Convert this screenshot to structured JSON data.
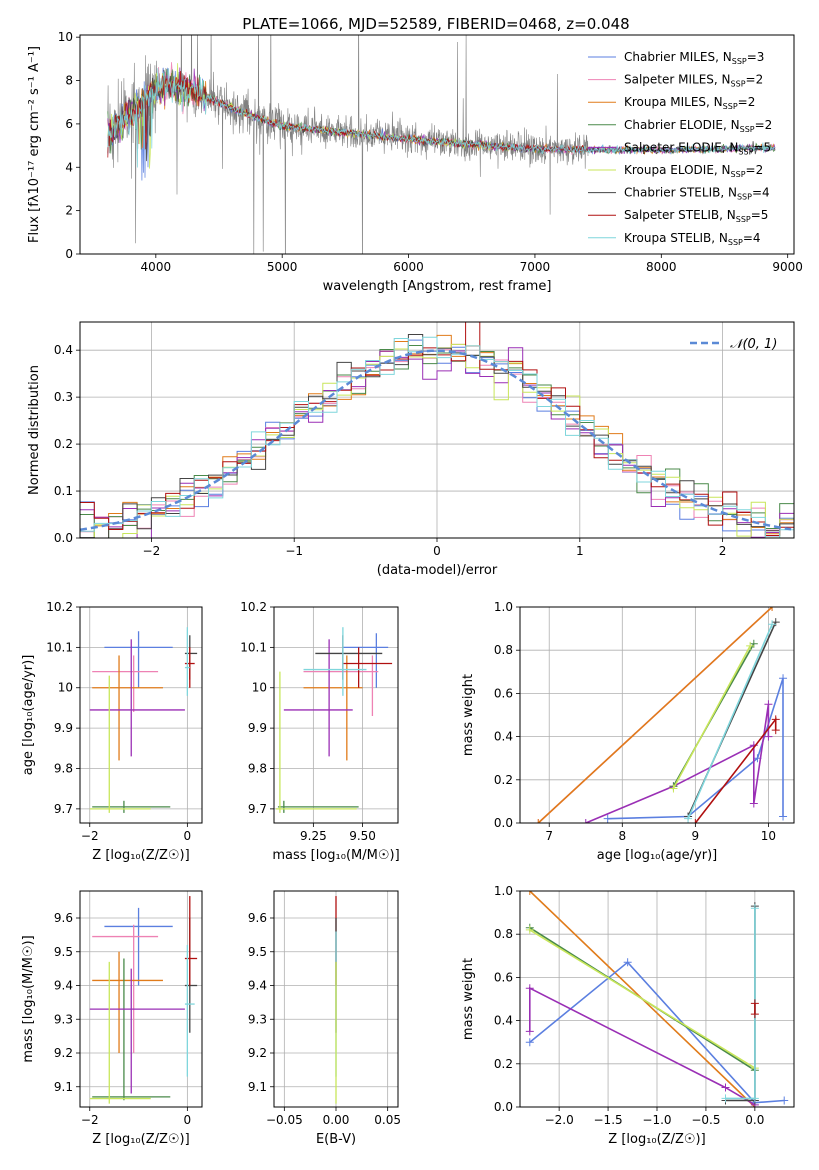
{
  "figure_title": "PLATE=1066, MJD=52589, FIBERID=0468, z=0.048",
  "models": [
    {
      "key": "chabrier_miles",
      "name": "Chabrier MILES",
      "nssp": "3",
      "color": "#5b7fe0"
    },
    {
      "key": "salpeter_miles",
      "name": "Salpeter MILES",
      "nssp": "2",
      "color": "#ee82b4"
    },
    {
      "key": "kroupa_miles",
      "name": "Kroupa MILES",
      "nssp": "2",
      "color": "#e07b1a"
    },
    {
      "key": "chabrier_elodie",
      "name": "Chabrier ELODIE",
      "nssp": "2",
      "color": "#4a8a4a"
    },
    {
      "key": "salpeter_elodie",
      "name": "Salpeter ELODIE",
      "nssp": "5",
      "color": "#9a2fb5"
    },
    {
      "key": "kroupa_elodie",
      "name": "Kroupa ELODIE",
      "nssp": "2",
      "color": "#c8e65a"
    },
    {
      "key": "chabrier_stelib",
      "name": "Chabrier STELIB",
      "nssp": "4",
      "color": "#444444"
    },
    {
      "key": "salpeter_stelib",
      "name": "Salpeter STELIB",
      "nssp": "5",
      "color": "#b01010"
    },
    {
      "key": "kroupa_stelib",
      "name": "Kroupa STELIB",
      "nssp": "4",
      "color": "#7fd6dc"
    }
  ],
  "chart_data": [
    {
      "id": "spectrum",
      "type": "line",
      "xlabel": "wavelength [Angstrom, rest frame]",
      "ylabel": "Flux [fλ10⁻¹⁷ erg cm⁻² s⁻¹ A⁻¹]",
      "xlim": [
        3400,
        9050
      ],
      "ylim": [
        0,
        10.1
      ],
      "xticks": [
        4000,
        5000,
        6000,
        7000,
        8000,
        9000
      ],
      "yticks": [
        0,
        2,
        4,
        6,
        8,
        10
      ],
      "grid": false,
      "legend_position": "top-right",
      "data_color": "#808080",
      "observed_range": [
        3620,
        7420
      ],
      "continuum_knots": {
        "x": [
          3620,
          3800,
          3950,
          4100,
          4300,
          4700,
          5000,
          5500,
          6000,
          6500,
          7000,
          7500,
          8000,
          8500,
          8900
        ],
        "y": [
          5.5,
          6.4,
          7.4,
          7.8,
          7.5,
          6.5,
          5.9,
          5.6,
          5.3,
          5.05,
          4.85,
          4.8,
          4.8,
          4.85,
          4.9
        ]
      }
    },
    {
      "id": "residuals",
      "type": "step",
      "xlabel": "(data-model)/error",
      "ylabel": "Normed distribution",
      "xlim": [
        -2.5,
        2.5
      ],
      "ylim": [
        0,
        0.46
      ],
      "xticks": [
        -2,
        -1,
        0,
        1,
        2
      ],
      "yticks": [
        0.0,
        0.1,
        0.2,
        0.3,
        0.4
      ],
      "grid": true,
      "legend_position": "top-right",
      "reference_curve": {
        "label": "𝒩(0, 1)",
        "color": "#5b8ad6",
        "mean": 0,
        "sigma": 1
      }
    },
    {
      "id": "age_vs_Z",
      "type": "errorbar",
      "xlabel": "Z [log₁₀(Z/Z☉)]",
      "ylabel": "age  [log₁₀(age/yr)]",
      "xlim": [
        -2.2,
        0.3
      ],
      "ylim": [
        9.665,
        10.2
      ],
      "xticks": [
        -2,
        0
      ],
      "yticks": [
        9.7,
        9.8,
        9.9,
        10.0,
        10.1,
        10.2
      ],
      "grid": true,
      "points": [
        {
          "m": "chabrier_miles",
          "x": -1.0,
          "y": 10.1,
          "xlo": -1.7,
          "xhi": -0.3,
          "ylo": 10.0,
          "yhi": 10.14
        },
        {
          "m": "salpeter_miles",
          "x": -1.1,
          "y": 10.04,
          "xlo": -1.95,
          "xhi": -0.6,
          "ylo": 9.94,
          "yhi": 10.08
        },
        {
          "m": "kroupa_miles",
          "x": -1.4,
          "y": 10.0,
          "xlo": -1.95,
          "xhi": -0.5,
          "ylo": 9.82,
          "yhi": 10.08
        },
        {
          "m": "chabrier_elodie",
          "x": -1.3,
          "y": 9.705,
          "xlo": -1.95,
          "xhi": -0.35,
          "ylo": 9.69,
          "yhi": 9.72
        },
        {
          "m": "salpeter_elodie",
          "x": -1.15,
          "y": 9.945,
          "xlo": -2.0,
          "xhi": -0.05,
          "ylo": 9.83,
          "yhi": 10.12
        },
        {
          "m": "kroupa_elodie",
          "x": -1.6,
          "y": 9.7,
          "xlo": -2.0,
          "xhi": -0.75,
          "ylo": 9.69,
          "yhi": 10.03
        },
        {
          "m": "chabrier_stelib",
          "x": 0.05,
          "y": 10.085,
          "xlo": -0.05,
          "xhi": 0.2,
          "ylo": 10.02,
          "yhi": 10.13
        },
        {
          "m": "salpeter_stelib",
          "x": 0.05,
          "y": 10.06,
          "xlo": -0.05,
          "xhi": 0.15,
          "ylo": 10.0,
          "yhi": 10.1
        },
        {
          "m": "kroupa_stelib",
          "x": 0.0,
          "y": 10.05,
          "xlo": -0.05,
          "xhi": 0.05,
          "ylo": 9.98,
          "yhi": 10.15
        }
      ]
    },
    {
      "id": "age_vs_mass",
      "type": "errorbar",
      "xlabel": "mass [log₁₀(M/M☉)]",
      "ylabel": "",
      "xlim": [
        9.05,
        9.68
      ],
      "ylim": [
        9.665,
        10.2
      ],
      "xticks": [
        9.25,
        9.5
      ],
      "xticklabels": [
        "9.25",
        "9.50"
      ],
      "yticks": [
        9.7,
        9.8,
        9.9,
        10.0,
        10.1,
        10.2
      ],
      "grid": true,
      "points": [
        {
          "m": "chabrier_miles",
          "x": 9.57,
          "y": 10.1,
          "xlo": 9.4,
          "xhi": 9.63,
          "ylo": 10.0,
          "yhi": 10.135
        },
        {
          "m": "salpeter_miles",
          "x": 9.55,
          "y": 10.04,
          "xlo": 9.2,
          "xhi": 9.58,
          "ylo": 9.93,
          "yhi": 10.08
        },
        {
          "m": "kroupa_miles",
          "x": 9.42,
          "y": 10.0,
          "xlo": 9.2,
          "xhi": 9.5,
          "ylo": 9.82,
          "yhi": 10.08
        },
        {
          "m": "chabrier_elodie",
          "x": 9.1,
          "y": 9.705,
          "xlo": 9.07,
          "xhi": 9.48,
          "ylo": 9.69,
          "yhi": 9.72
        },
        {
          "m": "salpeter_elodie",
          "x": 9.33,
          "y": 9.945,
          "xlo": 9.1,
          "xhi": 9.45,
          "ylo": 9.83,
          "yhi": 10.12
        },
        {
          "m": "kroupa_elodie",
          "x": 9.08,
          "y": 9.7,
          "xlo": 9.06,
          "xhi": 9.47,
          "ylo": 9.69,
          "yhi": 10.04
        },
        {
          "m": "chabrier_stelib",
          "x": 9.4,
          "y": 10.085,
          "xlo": 9.26,
          "xhi": 9.6,
          "ylo": 10.02,
          "yhi": 10.13
        },
        {
          "m": "salpeter_stelib",
          "x": 9.48,
          "y": 10.06,
          "xlo": 9.4,
          "xhi": 9.65,
          "ylo": 10.0,
          "yhi": 10.1
        },
        {
          "m": "kroupa_stelib",
          "x": 9.4,
          "y": 10.045,
          "xlo": 9.2,
          "xhi": 9.52,
          "ylo": 9.98,
          "yhi": 10.15
        }
      ]
    },
    {
      "id": "weight_vs_age",
      "type": "line",
      "xlabel": "age  [log₁₀(age/yr)]",
      "ylabel": "mass weight",
      "xlim": [
        6.6,
        10.35
      ],
      "ylim": [
        0,
        1.0
      ],
      "xticks": [
        7,
        8,
        9,
        10
      ],
      "yticks": [
        0.0,
        0.2,
        0.4,
        0.6,
        0.8,
        1.0
      ],
      "grid": true,
      "series": [
        {
          "m": "salpeter_miles",
          "x": [
            6.85,
            10.05
          ],
          "y": [
            0.0,
            1.0
          ]
        },
        {
          "m": "kroupa_miles",
          "x": [
            6.85,
            10.05
          ],
          "y": [
            0.0,
            1.0
          ]
        },
        {
          "m": "chabrier_miles",
          "x": [
            7.8,
            8.9,
            9.85,
            10.2,
            10.2
          ],
          "y": [
            0.02,
            0.03,
            0.3,
            0.67,
            0.03
          ]
        },
        {
          "m": "salpeter_elodie",
          "x": [
            7.5,
            8.7,
            9.8,
            9.8,
            10.0,
            10.0
          ],
          "y": [
            0.0,
            0.17,
            0.36,
            0.09,
            0.55,
            0.4
          ]
        },
        {
          "m": "chabrier_elodie",
          "x": [
            8.7,
            9.8
          ],
          "y": [
            0.17,
            0.83
          ]
        },
        {
          "m": "kroupa_elodie",
          "x": [
            8.7,
            9.75
          ],
          "y": [
            0.16,
            0.82
          ]
        },
        {
          "m": "salpeter_stelib",
          "x": [
            9.0,
            10.1,
            10.1
          ],
          "y": [
            0.0,
            0.48,
            0.43
          ]
        },
        {
          "m": "chabrier_stelib",
          "x": [
            8.9,
            10.1
          ],
          "y": [
            0.03,
            0.93
          ]
        },
        {
          "m": "kroupa_stelib",
          "x": [
            8.9,
            10.05
          ],
          "y": [
            0.02,
            0.92
          ]
        }
      ]
    },
    {
      "id": "mass_vs_Z",
      "type": "errorbar",
      "xlabel": "Z [log₁₀(Z/Z☉)]",
      "ylabel": "mass [log₁₀(M/M☉)]",
      "xlim": [
        -2.2,
        0.3
      ],
      "ylim": [
        9.04,
        9.68
      ],
      "xticks": [
        -2,
        0
      ],
      "yticks": [
        9.1,
        9.2,
        9.3,
        9.4,
        9.5,
        9.6
      ],
      "grid": true,
      "points": [
        {
          "m": "chabrier_miles",
          "x": -1.0,
          "y": 9.575,
          "xlo": -1.7,
          "xhi": -0.3,
          "ylo": 9.4,
          "yhi": 9.63
        },
        {
          "m": "salpeter_miles",
          "x": -1.1,
          "y": 9.545,
          "xlo": -1.95,
          "xhi": -0.6,
          "ylo": 9.2,
          "yhi": 9.58
        },
        {
          "m": "kroupa_miles",
          "x": -1.4,
          "y": 9.415,
          "xlo": -1.95,
          "xhi": -0.5,
          "ylo": 9.2,
          "yhi": 9.5
        },
        {
          "m": "chabrier_elodie",
          "x": -1.3,
          "y": 9.07,
          "xlo": -1.95,
          "xhi": -0.35,
          "ylo": 9.06,
          "yhi": 9.48
        },
        {
          "m": "salpeter_elodie",
          "x": -1.15,
          "y": 9.33,
          "xlo": -2.0,
          "xhi": -0.05,
          "ylo": 9.08,
          "yhi": 9.45
        },
        {
          "m": "kroupa_elodie",
          "x": -1.6,
          "y": 9.065,
          "xlo": -2.0,
          "xhi": -0.75,
          "ylo": 9.05,
          "yhi": 9.47
        },
        {
          "m": "chabrier_stelib",
          "x": 0.05,
          "y": 9.4,
          "xlo": -0.05,
          "xhi": 0.2,
          "ylo": 9.26,
          "yhi": 9.6
        },
        {
          "m": "salpeter_stelib",
          "x": 0.05,
          "y": 9.48,
          "xlo": -0.05,
          "xhi": 0.2,
          "ylo": 9.4,
          "yhi": 9.665
        },
        {
          "m": "kroupa_stelib",
          "x": 0.0,
          "y": 9.345,
          "xlo": -0.05,
          "xhi": 0.15,
          "ylo": 9.13,
          "yhi": 9.52
        }
      ]
    },
    {
      "id": "mass_vs_ebv",
      "type": "errorbar",
      "xlabel": "E(B-V)",
      "ylabel": "",
      "xlim": [
        -0.06,
        0.06
      ],
      "ylim": [
        9.04,
        9.68
      ],
      "xticks": [
        -0.05,
        0.0,
        0.05
      ],
      "xticklabels": [
        "−0.05",
        "0.00",
        "0.05"
      ],
      "yticks": [
        9.1,
        9.2,
        9.3,
        9.4,
        9.5,
        9.6
      ],
      "grid": true,
      "points": [
        {
          "m": "salpeter_stelib",
          "x": 0.0,
          "y": 9.5,
          "xlo": 0.0,
          "xhi": 0.0,
          "ylo": 9.4,
          "yhi": 9.665
        },
        {
          "m": "chabrier_stelib",
          "x": 0.0,
          "y": 9.4,
          "xlo": 0.0,
          "xhi": 0.0,
          "ylo": 9.26,
          "yhi": 9.6
        },
        {
          "m": "kroupa_stelib",
          "x": 0.0,
          "y": 9.34,
          "xlo": 0.0,
          "xhi": 0.0,
          "ylo": 9.13,
          "yhi": 9.56
        },
        {
          "m": "kroupa_elodie",
          "x": 0.0,
          "y": 9.07,
          "xlo": 0.0,
          "xhi": 0.0,
          "ylo": 9.05,
          "yhi": 9.47
        }
      ]
    },
    {
      "id": "weight_vs_Z",
      "type": "line",
      "xlabel": "Z [log₁₀(Z/Z☉)]",
      "ylabel": "mass weight",
      "xlim": [
        -2.4,
        0.4
      ],
      "ylim": [
        0,
        1.0
      ],
      "xticks": [
        -2.0,
        -1.5,
        -1.0,
        -0.5,
        0.0
      ],
      "xticklabels": [
        "−2.0",
        "−1.5",
        "−1.0",
        "−0.5",
        "0.0"
      ],
      "yticks": [
        0.0,
        0.2,
        0.4,
        0.6,
        0.8,
        1.0
      ],
      "grid": true,
      "series": [
        {
          "m": "kroupa_miles",
          "x": [
            -2.3,
            0.0
          ],
          "y": [
            1.0,
            0.0
          ]
        },
        {
          "m": "chabrier_miles",
          "x": [
            -2.3,
            -1.3,
            0.0,
            0.3
          ],
          "y": [
            0.3,
            0.67,
            0.02,
            0.03
          ]
        },
        {
          "m": "salpeter_elodie",
          "x": [
            -2.3,
            -2.3,
            -0.3,
            0.0
          ],
          "y": [
            0.35,
            0.55,
            0.09,
            0.01
          ]
        },
        {
          "m": "chabrier_elodie",
          "x": [
            -2.3,
            0.0
          ],
          "y": [
            0.83,
            0.17
          ]
        },
        {
          "m": "kroupa_elodie",
          "x": [
            -2.3,
            0.0
          ],
          "y": [
            0.82,
            0.18
          ]
        },
        {
          "m": "chabrier_stelib",
          "x": [
            -0.3,
            0.0,
            0.0
          ],
          "y": [
            0.03,
            0.03,
            0.93
          ]
        },
        {
          "m": "kroupa_stelib",
          "x": [
            -0.3,
            0.0,
            0.0
          ],
          "y": [
            0.04,
            0.04,
            0.92
          ]
        },
        {
          "m": "salpeter_stelib",
          "x": [
            0.0,
            0.0
          ],
          "y": [
            0.43,
            0.48
          ]
        }
      ]
    }
  ]
}
